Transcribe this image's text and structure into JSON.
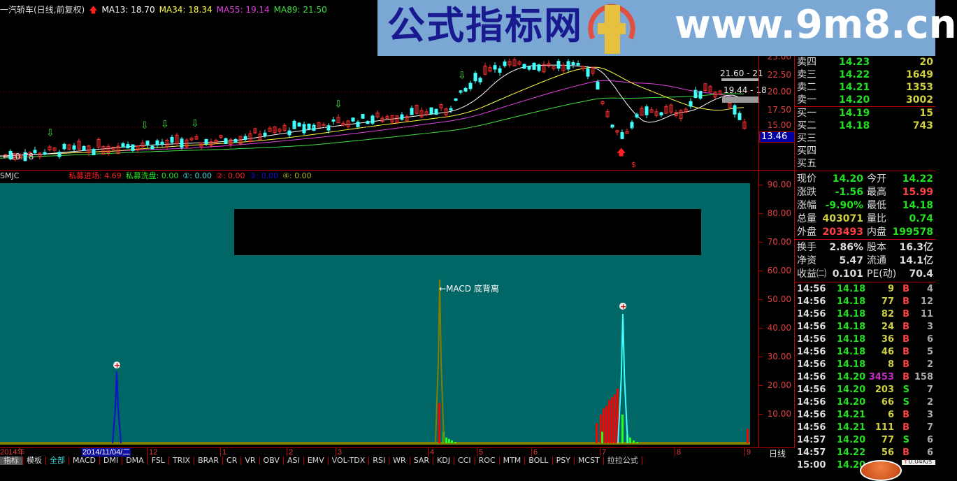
{
  "header": {
    "title": "一汽轿车(日线,前复权)",
    "ma13": "MA13: 18.70",
    "ma34": "MA34: 18.34",
    "ma55": "MA55: 19.14",
    "ma89": "MA89: 21.50"
  },
  "colors": {
    "ma13": "#ffffff",
    "ma34": "#ffff40",
    "ma55": "#e040e0",
    "ma89": "#40e040",
    "up": "#ff3030",
    "down": "#40ffff",
    "panel_bg": "#006666"
  },
  "price_axis": [
    "25.00",
    "22.50",
    "20.00",
    "17.50",
    "15.00"
  ],
  "price_labels": {
    "low": "10.78",
    "range1": "21.60 - 21",
    "range2": "19.44 - 18",
    "current": "13.46"
  },
  "indicator": {
    "name": "SMJC",
    "items": [
      {
        "label": "私募进场: 4.69",
        "color": "#ff2020"
      },
      {
        "label": "私募洗盘: 0.00",
        "color": "#20e020"
      },
      {
        "label": "①: 0.00",
        "color": "#40e0e0"
      },
      {
        "label": "②: 0.00",
        "color": "#ff2020"
      },
      {
        "label": "③: 0.00",
        "color": "#1010d0"
      },
      {
        "label": "④: 0.00",
        "color": "#b0b020"
      }
    ],
    "axis": [
      "90.00",
      "80.00",
      "70.00",
      "60.00",
      "50.00",
      "40.00",
      "30.00",
      "20.00",
      "10.00"
    ],
    "annotation": "←MACD 底背离",
    "signal_mark": "$"
  },
  "date_axis": {
    "year": "2014年",
    "cursor": "2014/11/04/二",
    "months": [
      "12",
      "1",
      "2",
      "3",
      "4",
      "5",
      "6",
      "7",
      "8",
      "9"
    ],
    "period": "日线"
  },
  "tabs": [
    "指标",
    "模板",
    "全部",
    "MACD",
    "DMI",
    "DMA",
    "FSL",
    "TRIX",
    "BRAR",
    "CR",
    "VR",
    "OBV",
    "ASI",
    "EMV",
    "VOL-TDX",
    "RSI",
    "WR",
    "SAR",
    "KDJ",
    "CCI",
    "ROC",
    "MTM",
    "BOLL",
    "PSY",
    "MCST",
    "拉拉公式"
  ],
  "order_book": [
    {
      "label": "卖四",
      "price": "14.23",
      "vol": "20"
    },
    {
      "label": "卖三",
      "price": "14.22",
      "vol": "1649"
    },
    {
      "label": "卖二",
      "price": "14.21",
      "vol": "1353"
    },
    {
      "label": "卖一",
      "price": "14.20",
      "vol": "3002"
    },
    {
      "label": "买一",
      "price": "14.19",
      "vol": "15"
    },
    {
      "label": "买二",
      "price": "14.18",
      "vol": "743"
    },
    {
      "label": "买三",
      "price": "",
      "vol": ""
    },
    {
      "label": "买四",
      "price": "",
      "vol": ""
    },
    {
      "label": "买五",
      "price": "",
      "vol": ""
    }
  ],
  "quote": [
    {
      "l1": "现价",
      "v1": "14.20",
      "c1": "#20e020",
      "l2": "今开",
      "v2": "14.22",
      "c2": "#20e020"
    },
    {
      "l1": "涨跌",
      "v1": "-1.56",
      "c1": "#20e020",
      "l2": "最高",
      "v2": "15.99",
      "c2": "#ff4040"
    },
    {
      "l1": "涨幅",
      "v1": "-9.90%",
      "c1": "#20e020",
      "l2": "最低",
      "v2": "14.18",
      "c2": "#20e020"
    },
    {
      "l1": "总量",
      "v1": "403071",
      "c1": "#d0d040",
      "l2": "量比",
      "v2": "0.74",
      "c2": "#20e020"
    },
    {
      "l1": "外盘",
      "v1": "203493",
      "c1": "#ff4040",
      "l2": "内盘",
      "v2": "199578",
      "c2": "#20e020"
    }
  ],
  "fundamentals": [
    {
      "l1": "换手",
      "v1": "2.86%",
      "l2": "股本",
      "v2": "16.3亿"
    },
    {
      "l1": "净资",
      "v1": "5.47",
      "l2": "流通",
      "v2": "14.1亿"
    },
    {
      "l1": "收益㈡",
      "v1": "0.101",
      "l2": "PE(动)",
      "v2": "70.4"
    }
  ],
  "ticks": [
    [
      "14:56",
      "14.18",
      "9",
      "B",
      "4"
    ],
    [
      "14:56",
      "14.18",
      "77",
      "B",
      "12"
    ],
    [
      "14:56",
      "14.18",
      "82",
      "B",
      "11"
    ],
    [
      "14:56",
      "14.18",
      "24",
      "B",
      "3"
    ],
    [
      "14:56",
      "14.18",
      "36",
      "B",
      "6"
    ],
    [
      "14:56",
      "14.18",
      "46",
      "B",
      "5"
    ],
    [
      "14:56",
      "14.18",
      "8",
      "B",
      "2"
    ],
    [
      "14:56",
      "14.20",
      "3453",
      "B",
      "158"
    ],
    [
      "14:56",
      "14.20",
      "203",
      "S",
      "7"
    ],
    [
      "14:56",
      "14.20",
      "66",
      "S",
      "2"
    ],
    [
      "14:56",
      "14.21",
      "6",
      "B",
      "3"
    ],
    [
      "14:56",
      "14.21",
      "111",
      "B",
      "7"
    ],
    [
      "14:57",
      "14.20",
      "77",
      "S",
      "6"
    ],
    [
      "14:57",
      "14.22",
      "56",
      "B",
      "6"
    ],
    [
      "15:00",
      "14.20",
      "",
      "",
      ""
    ]
  ],
  "net_speed": "0.04K/s",
  "banner": {
    "title": "公式指标网",
    "url": "www.9m8.cn"
  }
}
